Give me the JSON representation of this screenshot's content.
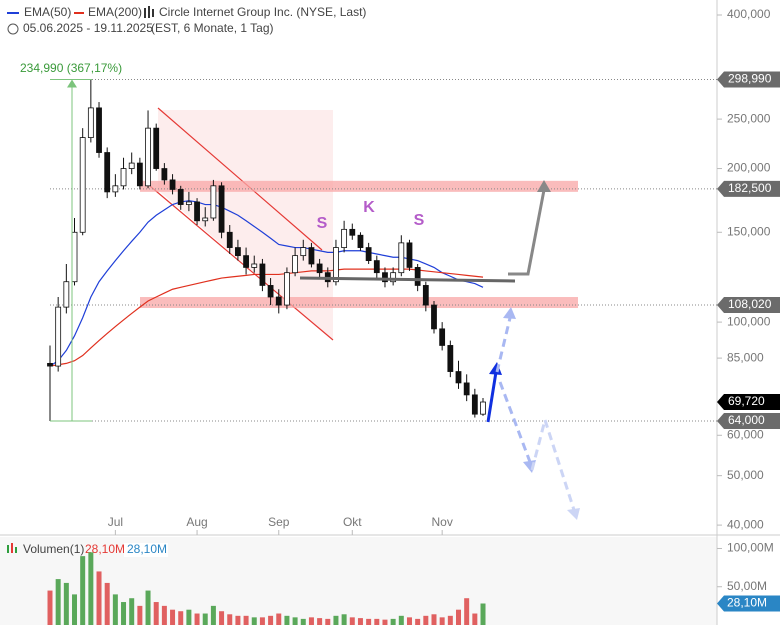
{
  "chart_data": {
    "type": "candlestick",
    "title": "Circle Internet Group Inc. (NYSE, Last)",
    "subtitle": "05.06.2025 - 19.11.2025",
    "subtitle_note": "(EST, 6 Monate, 1 Tag)",
    "log_scale": true,
    "ylim": [
      38600,
      428000
    ],
    "yticks": [
      {
        "value": 400000,
        "label": "400,000"
      },
      {
        "value": 250000,
        "label": "250,000"
      },
      {
        "value": 200000,
        "label": "200,000"
      },
      {
        "value": 150000,
        "label": "150,000"
      },
      {
        "value": 100000,
        "label": "100,000"
      },
      {
        "value": 85000,
        "label": "85,000"
      },
      {
        "value": 60000,
        "label": "60,000"
      },
      {
        "value": 50000,
        "label": "50,000"
      },
      {
        "value": 40000,
        "label": "40,000"
      }
    ],
    "xticks": [
      {
        "value": 8,
        "label": "Jul"
      },
      {
        "value": 18,
        "label": "Aug"
      },
      {
        "value": 28,
        "label": "Sep"
      },
      {
        "value": 37,
        "label": "Okt"
      },
      {
        "value": 48,
        "label": "Nov"
      }
    ],
    "open": [
      83000,
      82000,
      107000,
      120000,
      150000,
      230000,
      263000,
      215000,
      180000,
      185000,
      200000,
      205000,
      185000,
      240000,
      200000,
      190000,
      182000,
      170000,
      172000,
      158000,
      160000,
      185000,
      150000,
      140000,
      135000,
      128000,
      130000,
      118000,
      112000,
      108000,
      125000,
      135000,
      140000,
      130000,
      125000,
      120000,
      140000,
      152000,
      148000,
      140000,
      132000,
      125000,
      120000,
      125000,
      143000,
      128000,
      118000,
      108000,
      97000,
      90000,
      80000,
      76000,
      72000,
      66000
    ],
    "high": [
      90000,
      112000,
      130000,
      160000,
      240000,
      298990,
      270000,
      220000,
      195000,
      210000,
      215000,
      210000,
      260000,
      245000,
      205000,
      195000,
      185000,
      180000,
      175000,
      168000,
      190000,
      188000,
      155000,
      145000,
      140000,
      135000,
      133000,
      122000,
      116000,
      128000,
      140000,
      145000,
      143000,
      133000,
      128000,
      145000,
      158000,
      156000,
      150000,
      143000,
      135000,
      128000,
      128000,
      148000,
      145000,
      130000,
      120000,
      110000,
      100000,
      92000,
      84000,
      79000,
      74000,
      71000
    ],
    "low": [
      64000,
      80000,
      104000,
      118000,
      148000,
      225000,
      210000,
      175000,
      176000,
      182000,
      195000,
      182000,
      183000,
      198000,
      186000,
      178000,
      166000,
      165000,
      155000,
      154000,
      158000,
      146000,
      136000,
      132000,
      124000,
      125000,
      115000,
      108000,
      104000,
      106000,
      123000,
      132000,
      128000,
      122000,
      117000,
      118000,
      137000,
      145000,
      138000,
      130000,
      122000,
      117000,
      118000,
      123000,
      126000,
      115000,
      105000,
      95000,
      88000,
      78000,
      74000,
      70000,
      65000,
      65500
    ],
    "close": [
      82000,
      107000,
      120000,
      150000,
      230000,
      263000,
      215000,
      180000,
      185000,
      200000,
      205000,
      185000,
      240000,
      200000,
      190000,
      182000,
      170000,
      172000,
      158000,
      160000,
      185000,
      150000,
      140000,
      135000,
      128000,
      130000,
      118000,
      112000,
      108000,
      125000,
      135000,
      140000,
      130000,
      125000,
      120000,
      140000,
      152000,
      148000,
      140000,
      132000,
      125000,
      120000,
      125000,
      143000,
      128000,
      118000,
      108000,
      97000,
      90000,
      80000,
      76000,
      72000,
      66000,
      69720
    ],
    "series": [
      {
        "name": "EMA(50)",
        "color": "#1f3fd8",
        "values": [
          82000,
          84000,
          88000,
          94000,
          102000,
          112000,
          120000,
          126000,
          132000,
          138000,
          144000,
          150000,
          157000,
          162000,
          166000,
          170000,
          172000,
          173000,
          172000,
          170000,
          170000,
          168000,
          165000,
          162000,
          158000,
          154000,
          150000,
          146000,
          142000,
          141000,
          140000,
          140000,
          139000,
          138000,
          137000,
          137000,
          138000,
          138000,
          138000,
          137000,
          136000,
          135000,
          134000,
          134000,
          133000,
          132000,
          130000,
          128000,
          125000,
          123000,
          121000,
          120000,
          119000,
          117000
        ]
      },
      {
        "name": "EMA(200)",
        "color": "#e0301e",
        "values": [
          82000,
          82500,
          83000,
          84000,
          86000,
          89000,
          92000,
          95000,
          98000,
          101000,
          104000,
          107000,
          110000,
          112000,
          114000,
          116000,
          117000,
          118000,
          119000,
          120000,
          121000,
          122000,
          122500,
          123000,
          123500,
          124000,
          124000,
          124000,
          124000,
          124500,
          125000,
          125500,
          126000,
          126000,
          126000,
          126500,
          127000,
          127000,
          127000,
          127000,
          127000,
          127000,
          127000,
          127000,
          127000,
          126500,
          126000,
          125500,
          125000,
          124500,
          124000,
          123500,
          123000,
          122500
        ]
      }
    ],
    "price_tags": [
      {
        "value": 298990,
        "label": "298,990",
        "color": "#6b6b6b",
        "dotted": true,
        "zone": false
      },
      {
        "value": 182500,
        "label": "182,500",
        "color": "#6b6b6b",
        "dotted": true,
        "zone": true
      },
      {
        "value": 108020,
        "label": "108,020",
        "color": "#6b6b6b",
        "dotted": true,
        "zone": true
      },
      {
        "value": 69720,
        "label": "69,720",
        "color": "#000000",
        "dotted": false,
        "zone": false
      },
      {
        "value": 64000,
        "label": "64,000",
        "color": "#6b6b6b",
        "dotted": true,
        "zone": false
      }
    ],
    "range_label": "234,990 (367,17%)",
    "pattern_labels": [
      "S",
      "K",
      "S"
    ],
    "volume": {
      "name": "Volumen(1)",
      "legend_values": [
        "28,10M",
        "28,10M"
      ],
      "ylim": [
        0,
        115
      ],
      "yticks": [
        {
          "value": 100,
          "label": "100,00M"
        },
        {
          "value": 50,
          "label": "50,00M"
        }
      ],
      "values": [
        45,
        60,
        55,
        40,
        90,
        95,
        70,
        55,
        40,
        30,
        35,
        25,
        45,
        30,
        25,
        20,
        18,
        20,
        15,
        15,
        25,
        18,
        14,
        12,
        12,
        10,
        10,
        12,
        15,
        12,
        10,
        8,
        10,
        9,
        8,
        12,
        14,
        10,
        9,
        8,
        8,
        7,
        8,
        12,
        10,
        8,
        12,
        14,
        10,
        12,
        20,
        35,
        15,
        28.1
      ],
      "tag": {
        "value": 28.1,
        "label": "28,10M",
        "color": "#2a86c5"
      }
    }
  }
}
